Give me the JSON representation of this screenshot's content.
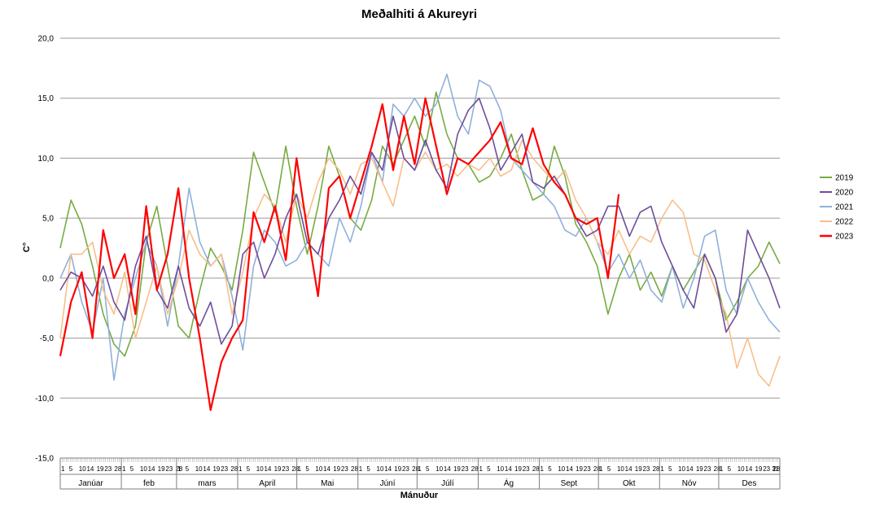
{
  "chart_data": {
    "type": "line",
    "title": "Meðalhiti á Akureyri",
    "xlabel": "Mánuður",
    "ylabel": "C°",
    "ylim": [
      -15,
      20
    ],
    "yticks": [
      "-15,0",
      "-10,0",
      "-5,0",
      "0,0",
      "5,0",
      "10,0",
      "15,0",
      "20,0"
    ],
    "ytick_values": [
      -15,
      -10,
      -5,
      0,
      5,
      10,
      15,
      20
    ],
    "grid": true,
    "legend_position": "right",
    "months": [
      "Janúar",
      "feb",
      "mars",
      "April",
      "Mai",
      "Júní",
      "Júlí",
      "Ág",
      "Sept",
      "Okt",
      "Nóv",
      "Des"
    ],
    "month_days": [
      31,
      28,
      31,
      30,
      31,
      30,
      31,
      31,
      30,
      31,
      30,
      31
    ],
    "day_tick_labels": [
      1,
      5,
      10,
      14,
      19,
      23,
      28
    ],
    "series": [
      {
        "name": "2019",
        "color": "#77ab43",
        "values": [
          2.5,
          6.5,
          4.5,
          1.0,
          -3.0,
          -5.5,
          -6.5,
          -4.0,
          3.0,
          6.0,
          1.0,
          -4.0,
          -5.0,
          -1.0,
          2.5,
          1.0,
          -1.0,
          4.0,
          10.5,
          8.0,
          5.5,
          11.0,
          6.0,
          2.0,
          6.0,
          11.0,
          8.5,
          5.0,
          4.0,
          6.5,
          11.0,
          9.5,
          11.5,
          13.5,
          11.0,
          15.5,
          12.0,
          10.0,
          9.5,
          8.0,
          8.5,
          10.0,
          12.0,
          9.0,
          6.5,
          7.0,
          11.0,
          8.5,
          4.5,
          3.0,
          1.0,
          -3.0,
          0.0,
          2.0,
          -1.0,
          0.5,
          -1.5,
          1.0,
          -1.0,
          0.5,
          2.0,
          0.0,
          -3.5,
          -2.0,
          0.0,
          1.0,
          3.0,
          1.2
        ]
      },
      {
        "name": "2020",
        "color": "#6e4d9b",
        "values": [
          -1.0,
          0.5,
          0.0,
          -1.5,
          1.0,
          -2.0,
          -3.5,
          1.0,
          3.5,
          -1.0,
          -2.5,
          1.0,
          -2.5,
          -4.0,
          -2.0,
          -5.5,
          -4.0,
          2.0,
          3.0,
          0.0,
          2.0,
          5.0,
          7.0,
          3.0,
          2.0,
          5.0,
          6.5,
          8.5,
          7.0,
          10.5,
          9.0,
          13.5,
          10.0,
          9.0,
          11.5,
          9.0,
          7.5,
          12.0,
          14.0,
          15.0,
          12.5,
          9.0,
          10.5,
          12.0,
          8.0,
          7.5,
          8.5,
          7.0,
          5.0,
          3.5,
          4.0,
          6.0,
          6.0,
          3.5,
          5.5,
          6.0,
          3.0,
          1.0,
          -1.0,
          -2.5,
          2.0,
          0.0,
          -4.5,
          -3.0,
          4.0,
          2.0,
          0.0,
          -2.5
        ]
      },
      {
        "name": "2021",
        "color": "#8fb1d9",
        "values": [
          0.0,
          2.0,
          -2.0,
          -4.5,
          0.0,
          -8.5,
          -3.0,
          0.0,
          3.0,
          1.0,
          -4.0,
          1.0,
          7.5,
          3.0,
          1.0,
          2.0,
          -1.5,
          -6.0,
          1.0,
          4.0,
          3.0,
          1.0,
          1.5,
          3.0,
          2.0,
          1.0,
          5.0,
          3.0,
          6.0,
          10.5,
          8.0,
          14.5,
          13.5,
          15.0,
          13.5,
          14.5,
          17.0,
          13.5,
          12.0,
          16.5,
          16.0,
          14.0,
          10.0,
          9.0,
          8.0,
          7.0,
          6.0,
          4.0,
          3.5,
          5.0,
          3.0,
          0.5,
          2.0,
          0.0,
          1.5,
          -1.0,
          -2.0,
          1.0,
          -2.5,
          0.0,
          3.5,
          4.0,
          -1.0,
          -3.0,
          0.0,
          -2.0,
          -3.5,
          -4.5
        ]
      },
      {
        "name": "2022",
        "color": "#f8bf8a",
        "values": [
          -5.0,
          2.0,
          2.0,
          3.0,
          -1.0,
          -3.0,
          0.5,
          -5.0,
          -2.0,
          1.0,
          -3.0,
          0.0,
          4.0,
          2.0,
          1.0,
          2.0,
          -3.0,
          0.5,
          5.0,
          7.0,
          6.0,
          3.0,
          7.0,
          5.0,
          8.0,
          10.0,
          9.0,
          7.0,
          9.5,
          10.0,
          8.0,
          6.0,
          10.0,
          9.0,
          10.5,
          9.0,
          9.5,
          8.5,
          9.5,
          9.0,
          10.0,
          8.5,
          9.0,
          11.5,
          10.0,
          9.0,
          8.0,
          9.0,
          6.5,
          5.0,
          3.0,
          2.0,
          4.0,
          2.0,
          3.5,
          3.0,
          5.0,
          6.5,
          5.5,
          2.0,
          1.5,
          -1.0,
          -3.0,
          -7.5,
          -5.0,
          -8.0,
          -9.0,
          -6.5
        ]
      },
      {
        "name": "2023",
        "color": "#ff0000",
        "values": [
          -6.5,
          -2.0,
          0.5,
          -5.0,
          4.0,
          0.0,
          2.0,
          -3.0,
          6.0,
          -1.0,
          2.0,
          7.5,
          0.0,
          -5.0,
          -11.0,
          -7.0,
          -5.0,
          -3.5,
          5.5,
          3.0,
          6.0,
          1.5,
          10.0,
          4.0,
          -1.5,
          7.5,
          8.5,
          5.0,
          8.0,
          11.0,
          14.5,
          9.0,
          13.5,
          9.5,
          15.0,
          11.0,
          7.0,
          10.0,
          9.5,
          10.5,
          11.5,
          13.0,
          10.0,
          9.5,
          12.5,
          9.5,
          8.0,
          7.0,
          5.0,
          4.5,
          5.0,
          0.0,
          7.0
        ]
      }
    ]
  }
}
